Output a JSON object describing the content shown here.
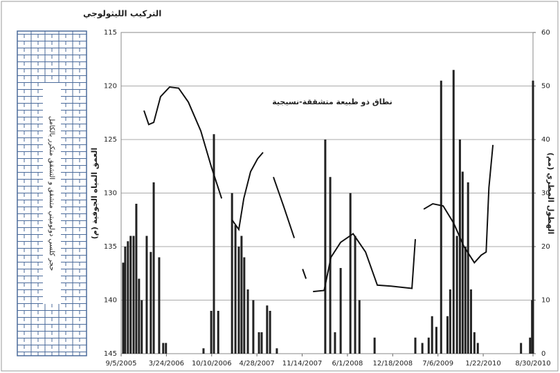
{
  "lithology": {
    "title": "التركيب الليثولوجي",
    "label": "حجر كلسي دولوميتي متشقق و التشقق متكرر بالكامل"
  },
  "chart_data": {
    "type": "combo",
    "y_title": "العمق المياه الجوفية (م)",
    "y2_title": "الهطول المطري (مم)",
    "annotation": "نطاق ذو طبيعة متشققة-نسيجية",
    "xlim": [
      "9/5/2005",
      "8/30/2010"
    ],
    "xticks": [
      "9/5/2005",
      "3/24/2006",
      "10/10/2006",
      "4/28/2007",
      "11/14/2007",
      "6/1/2008",
      "12/18/2008",
      "7/6/2009",
      "1/22/2010",
      "8/30/2010"
    ],
    "ylim": [
      115,
      145
    ],
    "y_reversed": true,
    "yticks": [
      115,
      120,
      125,
      130,
      135,
      140,
      145
    ],
    "y2lim": [
      0,
      60
    ],
    "y2ticks": [
      0,
      10,
      20,
      30,
      40,
      50,
      60
    ],
    "grid": true,
    "series": [
      {
        "type": "line",
        "color": "#111",
        "x": [
          "12/15/2005",
          "1/5/2006",
          "1/27/2006",
          "2/26/2006",
          "4/7/2006",
          "5/17/2006",
          "6/29/2006",
          "8/23/2006",
          "10/8/2006",
          "11/23/2006",
          "12/10/2006",
          "1/8/2007",
          "2/7/2007",
          "3/1/2007",
          "3/31/2007",
          "5/1/2007",
          "5/25/2007",
          "6/10/2007",
          "7/10/2007",
          "8/25/2007",
          "10/10/2007",
          "10/25/2007",
          "11/16/2007",
          "12/1/2007",
          "12/15/2007",
          "1/1/2008",
          "2/19/2008",
          "3/20/2008",
          "5/2/2008",
          "6/26/2008",
          "8/20/2008",
          "10/11/2008",
          "12/11/2008",
          "3/13/2009",
          "3/28/2009",
          "4/15/2009",
          "5/4/2009",
          "6/13/2009",
          "7/29/2009",
          "9/13/2009",
          "10/29/2009",
          "12/14/2009",
          "1/13/2010",
          "2/4/2010",
          "2/16/2010",
          "3/6/2010"
        ],
        "values": [
          122.3,
          123.6,
          123.4,
          121,
          120.1,
          120.2,
          121.5,
          124.2,
          127.5,
          130.5,
          null,
          132.5,
          133.4,
          130.5,
          128,
          126.8,
          126.2,
          null,
          128.5,
          131.3,
          134.2,
          null,
          137.1,
          138,
          null,
          139.2,
          139.1,
          136,
          134.6,
          133.8,
          135.5,
          138.6,
          138.7,
          138.9,
          134.3,
          null,
          131.5,
          131,
          131.2,
          132.8,
          135,
          136.5,
          135.8,
          135.5,
          129.5,
          125.5
        ]
      },
      {
        "type": "bar",
        "axis": "y2",
        "color": "#222",
        "x": [
          "9/14/2005",
          "9/23/2005",
          "10/5/2005",
          "10/17/2005",
          "10/30/2005",
          "11/11/2005",
          "11/23/2005",
          "12/5/2005",
          "12/27/2005",
          "1/14/2006",
          "1/27/2006",
          "2/20/2006",
          "3/10/2006",
          "3/22/2006",
          "9/4/2006",
          "10/8/2006",
          "10/20/2006",
          "11/8/2006",
          "1/8/2007",
          "1/23/2007",
          "2/7/2007",
          "2/19/2007",
          "3/3/2007",
          "3/19/2007",
          "4/12/2007",
          "5/7/2007",
          "5/19/2007",
          "6/12/2007",
          "6/25/2007",
          "7/25/2007",
          "2/24/2008",
          "3/17/2008",
          "4/7/2008",
          "5/2/2008",
          "6/14/2008",
          "7/5/2008",
          "7/24/2008",
          "9/29/2008",
          "3/28/2009",
          "4/28/2009",
          "5/26/2009",
          "6/10/2009",
          "6/29/2009",
          "7/20/2009",
          "8/17/2009",
          "8/29/2009",
          "9/13/2009",
          "9/28/2009",
          "10/11/2009",
          "10/23/2009",
          "11/4/2009",
          "11/16/2009",
          "11/29/2009",
          "12/14/2009",
          "12/29/2009",
          "7/8/2010",
          "8/17/2010",
          "8/26/2010",
          "8/30/2010"
        ],
        "values": [
          17,
          20,
          21,
          22,
          22,
          28,
          14,
          10,
          22,
          19,
          32,
          18,
          2,
          2,
          1,
          8,
          41,
          8,
          30,
          24,
          20,
          22,
          18,
          12,
          10,
          4,
          4,
          9,
          8,
          1,
          40,
          33,
          4,
          16,
          30,
          22,
          10,
          3,
          3,
          2,
          3,
          7,
          5,
          51,
          7,
          12,
          53,
          22,
          40,
          34,
          20,
          32,
          12,
          4,
          2,
          2,
          3,
          10,
          51
        ]
      }
    ]
  }
}
